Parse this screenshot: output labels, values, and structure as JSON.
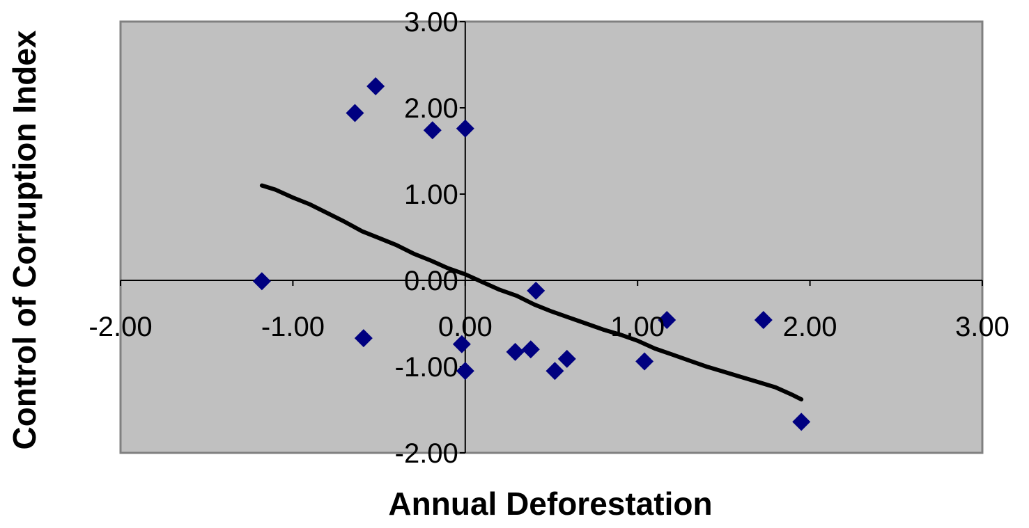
{
  "chart_data": {
    "type": "scatter",
    "title": "",
    "xlabel": "Annual Deforestation",
    "ylabel": "Control of Corruption Index",
    "xlim": [
      -2,
      3
    ],
    "ylim": [
      -2,
      3
    ],
    "x_ticks": [
      "-2.00",
      "-1.00",
      "0.00",
      "1.00",
      "2.00",
      "3.00"
    ],
    "y_ticks": [
      "3.00",
      "2.00",
      "1.00",
      "0.00",
      "-1.00",
      "-2.00"
    ],
    "grid": false,
    "legend": "none",
    "plot_background": "#c0c0c0",
    "marker_color": "#000080",
    "marker_shape": "diamond",
    "trend_color": "#000000",
    "series": [
      {
        "points": [
          {
            "x": -1.18,
            "y": -0.01
          },
          {
            "x": -0.64,
            "y": 1.94
          },
          {
            "x": -0.52,
            "y": 2.25
          },
          {
            "x": -0.59,
            "y": -0.67
          },
          {
            "x": -0.19,
            "y": 1.74
          },
          {
            "x": 0.0,
            "y": 1.76
          },
          {
            "x": -0.02,
            "y": -0.74
          },
          {
            "x": 0.0,
            "y": -1.05
          },
          {
            "x": 0.29,
            "y": -0.83
          },
          {
            "x": 0.38,
            "y": -0.8
          },
          {
            "x": 0.41,
            "y": -0.12
          },
          {
            "x": 0.52,
            "y": -1.05
          },
          {
            "x": 0.59,
            "y": -0.91
          },
          {
            "x": 1.04,
            "y": -0.94
          },
          {
            "x": 1.17,
            "y": -0.46
          },
          {
            "x": 1.73,
            "y": -0.46
          },
          {
            "x": 1.95,
            "y": -1.64
          }
        ]
      }
    ],
    "trendline": [
      {
        "x": -1.18,
        "y": 1.1
      },
      {
        "x": -1.1,
        "y": 1.05
      },
      {
        "x": -1.0,
        "y": 0.96
      },
      {
        "x": -0.9,
        "y": 0.88
      },
      {
        "x": -0.8,
        "y": 0.78
      },
      {
        "x": -0.7,
        "y": 0.68
      },
      {
        "x": -0.6,
        "y": 0.57
      },
      {
        "x": -0.5,
        "y": 0.49
      },
      {
        "x": -0.4,
        "y": 0.41
      },
      {
        "x": -0.3,
        "y": 0.31
      },
      {
        "x": -0.2,
        "y": 0.23
      },
      {
        "x": -0.1,
        "y": 0.14
      },
      {
        "x": 0.0,
        "y": 0.07
      },
      {
        "x": 0.1,
        "y": -0.02
      },
      {
        "x": 0.2,
        "y": -0.11
      },
      {
        "x": 0.3,
        "y": -0.18
      },
      {
        "x": 0.4,
        "y": -0.28
      },
      {
        "x": 0.5,
        "y": -0.36
      },
      {
        "x": 0.6,
        "y": -0.43
      },
      {
        "x": 0.7,
        "y": -0.5
      },
      {
        "x": 0.8,
        "y": -0.57
      },
      {
        "x": 0.9,
        "y": -0.63
      },
      {
        "x": 1.0,
        "y": -0.7
      },
      {
        "x": 1.1,
        "y": -0.79
      },
      {
        "x": 1.2,
        "y": -0.86
      },
      {
        "x": 1.3,
        "y": -0.93
      },
      {
        "x": 1.4,
        "y": -1.0
      },
      {
        "x": 1.5,
        "y": -1.06
      },
      {
        "x": 1.6,
        "y": -1.12
      },
      {
        "x": 1.7,
        "y": -1.18
      },
      {
        "x": 1.8,
        "y": -1.24
      },
      {
        "x": 1.9,
        "y": -1.33
      },
      {
        "x": 1.95,
        "y": -1.38
      }
    ]
  }
}
